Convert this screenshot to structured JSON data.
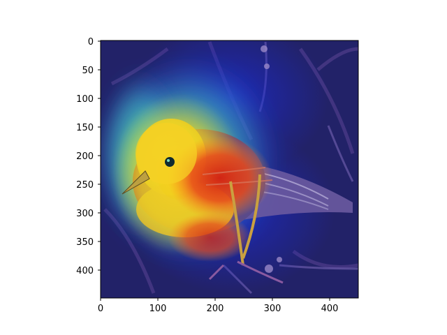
{
  "figure": {
    "image_description_id": "bird-attention-heatmap",
    "colormap": "jet",
    "overlay_alpha": 0.55
  },
  "axes": {
    "x_ticks": [
      "0",
      "100",
      "200",
      "300",
      "400"
    ],
    "y_ticks": [
      "0",
      "50",
      "100",
      "150",
      "200",
      "250",
      "300",
      "350",
      "400"
    ],
    "x_range": [
      0,
      450
    ],
    "y_range": [
      0,
      450
    ]
  }
}
